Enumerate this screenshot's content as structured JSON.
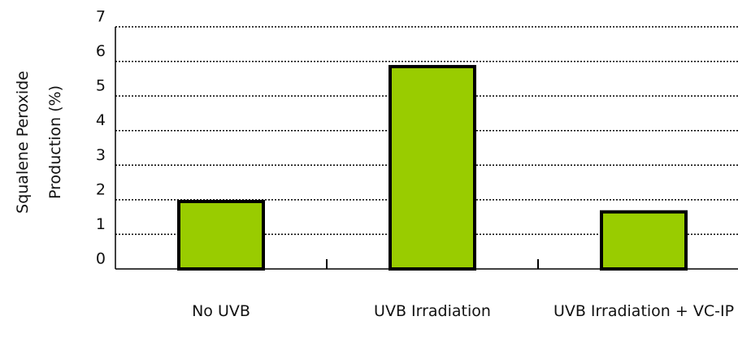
{
  "chart_data": {
    "type": "bar",
    "y_label": "Squalene Peroxide Production (%)",
    "categories": [
      "No UVB",
      "UVB Irradiation",
      "UVB Irradiation + VC-IP"
    ],
    "values": [
      1.95,
      5.85,
      1.65
    ],
    "color": "#99cc00",
    "ylim": [
      0,
      7
    ],
    "yticks": [
      0,
      1,
      2,
      3,
      4,
      5,
      6,
      7
    ],
    "grid": true
  }
}
